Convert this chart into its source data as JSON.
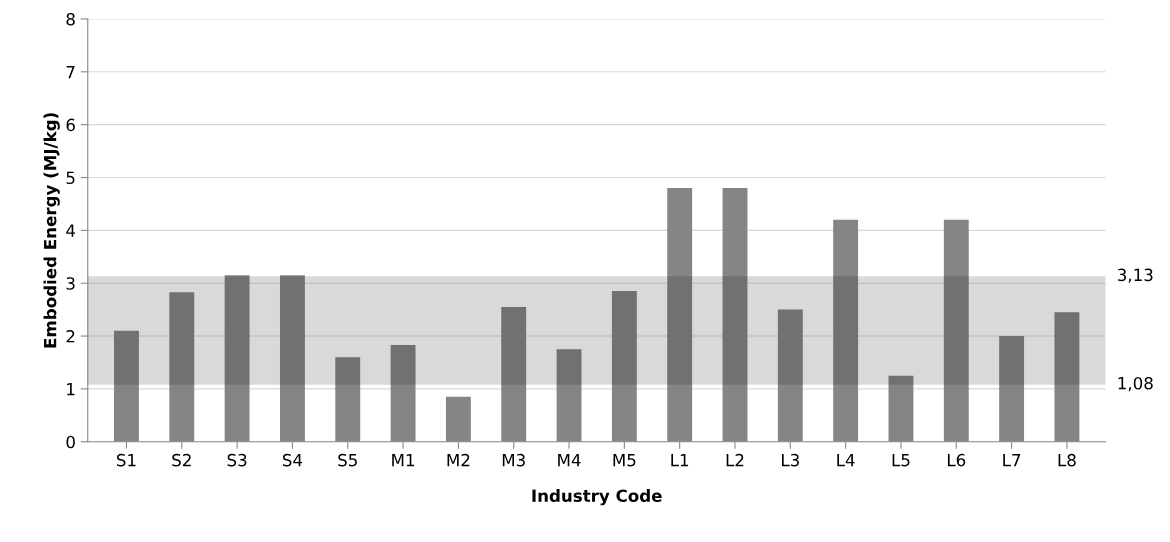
{
  "chart_data": {
    "type": "bar",
    "xlabel": "Industry Code",
    "ylabel": "Embodied Energy (MJ/kg)",
    "categories": [
      "S1",
      "S2",
      "S3",
      "S4",
      "S5",
      "M1",
      "M2",
      "M3",
      "M4",
      "M5",
      "L1",
      "L2",
      "L3",
      "L4",
      "L5",
      "L6",
      "L7",
      "L8"
    ],
    "values": [
      2.1,
      2.83,
      3.15,
      3.15,
      1.6,
      1.83,
      0.85,
      2.55,
      1.75,
      2.85,
      4.8,
      4.8,
      2.5,
      4.2,
      1.25,
      4.2,
      2.0,
      2.45
    ],
    "color": "#858585",
    "ylim": [
      0,
      8
    ],
    "yticks": [
      0,
      1,
      2,
      3,
      4,
      5,
      6,
      7,
      8
    ],
    "grid": "y",
    "bands": [
      {
        "axis": "y",
        "from": 1.08,
        "to": 3.13,
        "color": "#000000"
      }
    ],
    "annotations": [
      "3,13",
      "1,08"
    ]
  }
}
